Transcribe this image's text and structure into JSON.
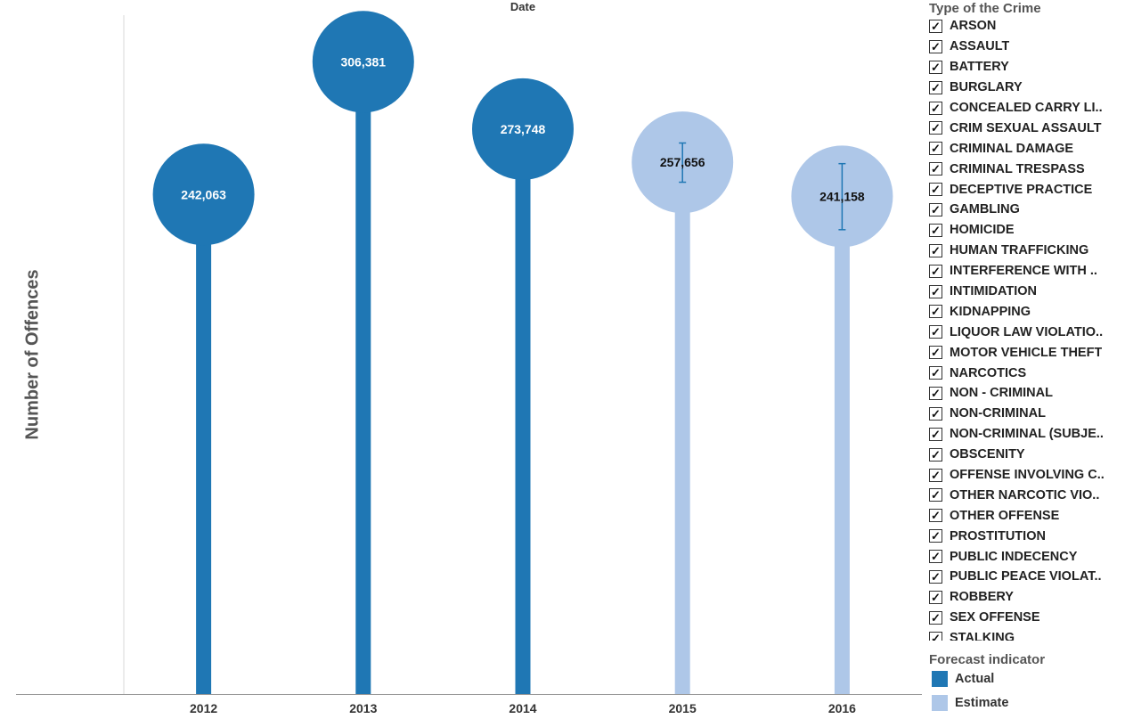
{
  "chart_data": {
    "type": "lollipop",
    "column_header": "Date",
    "ylabel": "Number of Offences",
    "categories": [
      "2012",
      "2013",
      "2014",
      "2015",
      "2016"
    ],
    "values": [
      242063,
      306381,
      273748,
      257656,
      241158
    ],
    "value_labels": [
      "242,063",
      "306,381",
      "273,748",
      "257,656",
      "241,158"
    ],
    "forecast": [
      "Actual",
      "Actual",
      "Actual",
      "Estimate",
      "Estimate"
    ],
    "error_ranges": [
      null,
      null,
      null,
      [
        248000,
        267000
      ],
      [
        225000,
        257000
      ]
    ],
    "ylim": [
      0,
      335000
    ],
    "grid": false
  },
  "colors": {
    "actual": "#1f77b4",
    "estimate": "#aec7e8",
    "error_bar": "#1f77b4"
  },
  "filter": {
    "title": "Type of the Crime",
    "items": [
      {
        "label": "ARSON",
        "checked": true
      },
      {
        "label": "ASSAULT",
        "checked": true
      },
      {
        "label": "BATTERY",
        "checked": true
      },
      {
        "label": "BURGLARY",
        "checked": true
      },
      {
        "label": "CONCEALED CARRY LI..",
        "checked": true
      },
      {
        "label": "CRIM SEXUAL ASSAULT",
        "checked": true
      },
      {
        "label": "CRIMINAL DAMAGE",
        "checked": true
      },
      {
        "label": "CRIMINAL TRESPASS",
        "checked": true
      },
      {
        "label": "DECEPTIVE PRACTICE",
        "checked": true
      },
      {
        "label": "GAMBLING",
        "checked": true
      },
      {
        "label": "HOMICIDE",
        "checked": true
      },
      {
        "label": "HUMAN TRAFFICKING",
        "checked": true
      },
      {
        "label": "INTERFERENCE WITH ..",
        "checked": true
      },
      {
        "label": "INTIMIDATION",
        "checked": true
      },
      {
        "label": "KIDNAPPING",
        "checked": true
      },
      {
        "label": "LIQUOR LAW VIOLATIO..",
        "checked": true
      },
      {
        "label": "MOTOR VEHICLE THEFT",
        "checked": true
      },
      {
        "label": "NARCOTICS",
        "checked": true
      },
      {
        "label": "NON - CRIMINAL",
        "checked": true
      },
      {
        "label": "NON-CRIMINAL",
        "checked": true
      },
      {
        "label": "NON-CRIMINAL (SUBJE..",
        "checked": true
      },
      {
        "label": "OBSCENITY",
        "checked": true
      },
      {
        "label": "OFFENSE INVOLVING C..",
        "checked": true
      },
      {
        "label": "OTHER NARCOTIC VIO..",
        "checked": true
      },
      {
        "label": "OTHER OFFENSE",
        "checked": true
      },
      {
        "label": "PROSTITUTION",
        "checked": true
      },
      {
        "label": "PUBLIC INDECENCY",
        "checked": true
      },
      {
        "label": "PUBLIC PEACE VIOLAT..",
        "checked": true
      },
      {
        "label": "ROBBERY",
        "checked": true
      },
      {
        "label": "SEX OFFENSE",
        "checked": true
      },
      {
        "label": "STALKING",
        "checked": true
      }
    ]
  },
  "legend": {
    "title": "Forecast indicator",
    "items": [
      {
        "label": "Actual",
        "color": "#1f77b4"
      },
      {
        "label": "Estimate",
        "color": "#aec7e8"
      }
    ]
  }
}
